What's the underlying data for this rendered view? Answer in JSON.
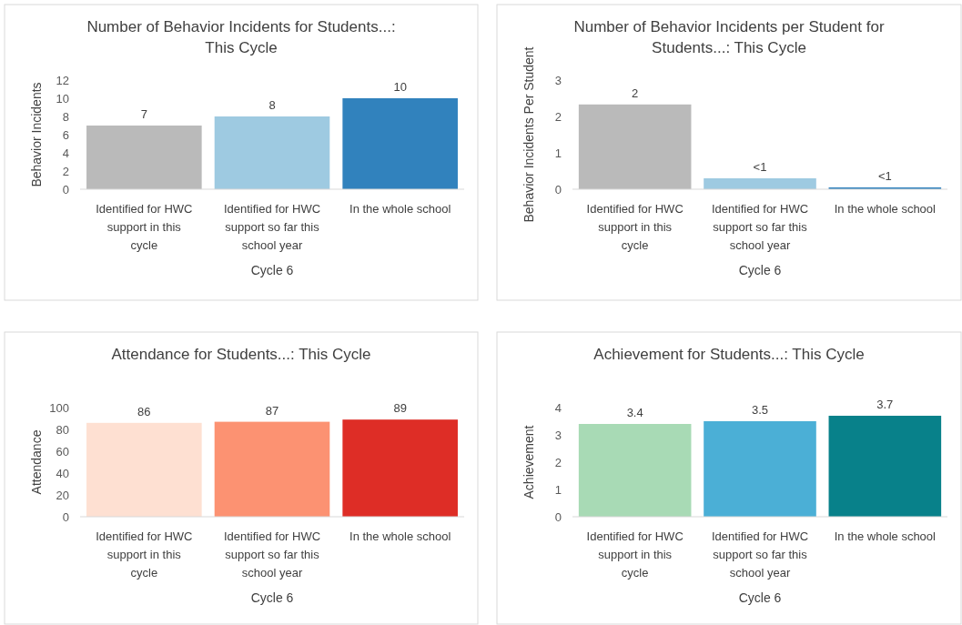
{
  "chart_data": [
    {
      "type": "bar",
      "title": "Number of Behavior Incidents for Students...: This Cycle",
      "xlabel": "Cycle 6",
      "ylabel": "Behavior Incidents",
      "categories": [
        "Identified for HWC support in this cycle",
        "Identified for HWC support so far this school year",
        "In the whole school"
      ],
      "values": [
        7,
        8,
        10
      ],
      "colors": [
        "#bababa",
        "#9ecae1",
        "#3182bd"
      ],
      "ylim": [
        0,
        12
      ],
      "yticks": [
        0,
        2,
        4,
        6,
        8,
        10,
        12
      ],
      "data_labels": true
    },
    {
      "type": "bar",
      "title": "Number of Behavior Incidents per Student for Students...: This Cycle",
      "xlabel": "Cycle 6",
      "ylabel": "Behavior Incidents Per Student",
      "categories": [
        "Identified for HWC support in this cycle",
        "Identified for HWC support so far this school year",
        "In the whole school"
      ],
      "values": [
        2.33,
        0.3,
        0.05
      ],
      "value_labels": [
        "2",
        "<1",
        "<1"
      ],
      "colors": [
        "#bababa",
        "#9ecae1",
        "#3182bd"
      ],
      "ylim": [
        0,
        3
      ],
      "yticks": [
        0,
        1,
        2,
        3
      ]
    },
    {
      "type": "bar",
      "title": "Attendance for Students...: This Cycle",
      "xlabel": "Cycle 6",
      "ylabel": "Attendance",
      "categories": [
        "Identified for HWC support in this cycle",
        "Identified for HWC support so far this school year",
        "In the whole school"
      ],
      "values": [
        86,
        87,
        89
      ],
      "colors": [
        "#fee0d2",
        "#fc9272",
        "#de2d26"
      ],
      "ylim": [
        0,
        100
      ],
      "yticks": [
        0,
        20,
        40,
        60,
        80,
        100
      ],
      "data_labels": true
    },
    {
      "type": "bar",
      "title": "Achievement for Students...: This Cycle",
      "xlabel": "Cycle 6",
      "ylabel": "Achievement",
      "categories": [
        "Identified for HWC support in this cycle",
        "Identified for HWC support so far this school year",
        "In the whole school"
      ],
      "values": [
        3.4,
        3.5,
        3.7
      ],
      "colors": [
        "#a8dab5",
        "#4bafd6",
        "#08818a"
      ],
      "ylim": [
        0,
        4
      ],
      "yticks": [
        0,
        1,
        2,
        3,
        4
      ],
      "data_labels": true
    }
  ]
}
